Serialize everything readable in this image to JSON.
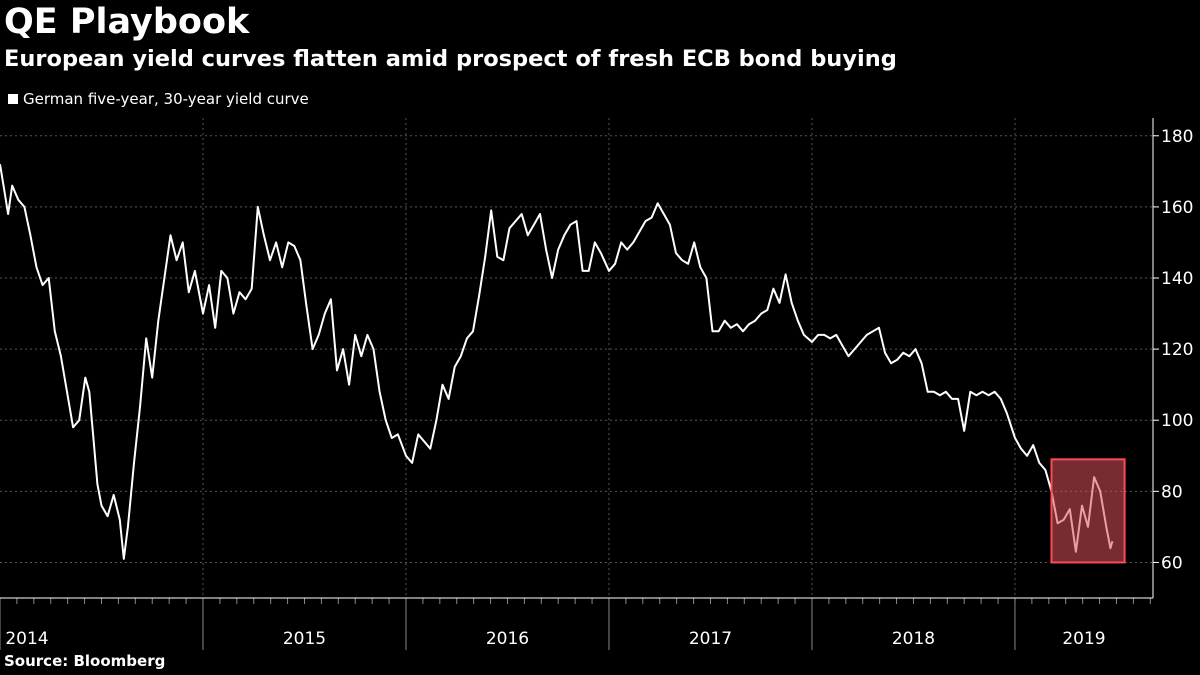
{
  "chart_data": {
    "type": "line",
    "title": "QE Playbook",
    "subtitle": "European yield curves flatten amid prospect of fresh ECB bond buying",
    "source": "Source: Bloomberg",
    "series": [
      {
        "name": "German five-year, 30-year yield curve",
        "points": [
          [
            2014.0,
            172
          ],
          [
            2014.02,
            165
          ],
          [
            2014.04,
            158
          ],
          [
            2014.06,
            166
          ],
          [
            2014.09,
            162
          ],
          [
            2014.12,
            160
          ],
          [
            2014.15,
            152
          ],
          [
            2014.18,
            143
          ],
          [
            2014.21,
            138
          ],
          [
            2014.24,
            140
          ],
          [
            2014.27,
            125
          ],
          [
            2014.3,
            118
          ],
          [
            2014.33,
            108
          ],
          [
            2014.36,
            98
          ],
          [
            2014.39,
            100
          ],
          [
            2014.42,
            112
          ],
          [
            2014.44,
            108
          ],
          [
            2014.46,
            95
          ],
          [
            2014.48,
            82
          ],
          [
            2014.5,
            76
          ],
          [
            2014.53,
            73
          ],
          [
            2014.56,
            79
          ],
          [
            2014.59,
            72
          ],
          [
            2014.61,
            61
          ],
          [
            2014.63,
            70
          ],
          [
            2014.66,
            88
          ],
          [
            2014.69,
            104
          ],
          [
            2014.72,
            123
          ],
          [
            2014.75,
            112
          ],
          [
            2014.78,
            128
          ],
          [
            2014.81,
            140
          ],
          [
            2014.84,
            152
          ],
          [
            2014.87,
            145
          ],
          [
            2014.9,
            150
          ],
          [
            2014.93,
            136
          ],
          [
            2014.96,
            142
          ],
          [
            2015.0,
            130
          ],
          [
            2015.03,
            138
          ],
          [
            2015.06,
            126
          ],
          [
            2015.09,
            142
          ],
          [
            2015.12,
            140
          ],
          [
            2015.15,
            130
          ],
          [
            2015.18,
            136
          ],
          [
            2015.21,
            134
          ],
          [
            2015.24,
            137
          ],
          [
            2015.27,
            160
          ],
          [
            2015.3,
            152
          ],
          [
            2015.33,
            145
          ],
          [
            2015.36,
            150
          ],
          [
            2015.39,
            143
          ],
          [
            2015.42,
            150
          ],
          [
            2015.45,
            149
          ],
          [
            2015.48,
            145
          ],
          [
            2015.51,
            132
          ],
          [
            2015.54,
            120
          ],
          [
            2015.57,
            124
          ],
          [
            2015.6,
            130
          ],
          [
            2015.63,
            134
          ],
          [
            2015.66,
            114
          ],
          [
            2015.69,
            120
          ],
          [
            2015.72,
            110
          ],
          [
            2015.75,
            124
          ],
          [
            2015.78,
            118
          ],
          [
            2015.81,
            124
          ],
          [
            2015.84,
            120
          ],
          [
            2015.87,
            108
          ],
          [
            2015.9,
            100
          ],
          [
            2015.93,
            95
          ],
          [
            2015.96,
            96
          ],
          [
            2016.0,
            90
          ],
          [
            2016.03,
            88
          ],
          [
            2016.06,
            96
          ],
          [
            2016.09,
            94
          ],
          [
            2016.12,
            92
          ],
          [
            2016.15,
            100
          ],
          [
            2016.18,
            110
          ],
          [
            2016.21,
            106
          ],
          [
            2016.24,
            115
          ],
          [
            2016.27,
            118
          ],
          [
            2016.3,
            123
          ],
          [
            2016.33,
            125
          ],
          [
            2016.36,
            135
          ],
          [
            2016.39,
            146
          ],
          [
            2016.42,
            159
          ],
          [
            2016.45,
            146
          ],
          [
            2016.48,
            145
          ],
          [
            2016.51,
            154
          ],
          [
            2016.54,
            156
          ],
          [
            2016.57,
            158
          ],
          [
            2016.6,
            152
          ],
          [
            2016.63,
            155
          ],
          [
            2016.66,
            158
          ],
          [
            2016.69,
            148
          ],
          [
            2016.72,
            140
          ],
          [
            2016.75,
            148
          ],
          [
            2016.78,
            152
          ],
          [
            2016.81,
            155
          ],
          [
            2016.84,
            156
          ],
          [
            2016.87,
            142
          ],
          [
            2016.9,
            142
          ],
          [
            2016.93,
            150
          ],
          [
            2016.96,
            147
          ],
          [
            2017.0,
            142
          ],
          [
            2017.03,
            144
          ],
          [
            2017.06,
            150
          ],
          [
            2017.09,
            148
          ],
          [
            2017.12,
            150
          ],
          [
            2017.15,
            153
          ],
          [
            2017.18,
            156
          ],
          [
            2017.21,
            157
          ],
          [
            2017.24,
            161
          ],
          [
            2017.27,
            158
          ],
          [
            2017.3,
            155
          ],
          [
            2017.33,
            147
          ],
          [
            2017.36,
            145
          ],
          [
            2017.39,
            144
          ],
          [
            2017.42,
            150
          ],
          [
            2017.45,
            143
          ],
          [
            2017.48,
            140
          ],
          [
            2017.51,
            125
          ],
          [
            2017.54,
            125
          ],
          [
            2017.57,
            128
          ],
          [
            2017.6,
            126
          ],
          [
            2017.63,
            127
          ],
          [
            2017.66,
            125
          ],
          [
            2017.69,
            127
          ],
          [
            2017.72,
            128
          ],
          [
            2017.75,
            130
          ],
          [
            2017.78,
            131
          ],
          [
            2017.81,
            137
          ],
          [
            2017.84,
            133
          ],
          [
            2017.87,
            141
          ],
          [
            2017.9,
            133
          ],
          [
            2017.93,
            128
          ],
          [
            2017.96,
            124
          ],
          [
            2018.0,
            122
          ],
          [
            2018.03,
            124
          ],
          [
            2018.06,
            124
          ],
          [
            2018.09,
            123
          ],
          [
            2018.12,
            124
          ],
          [
            2018.15,
            121
          ],
          [
            2018.18,
            118
          ],
          [
            2018.21,
            120
          ],
          [
            2018.24,
            122
          ],
          [
            2018.27,
            124
          ],
          [
            2018.3,
            125
          ],
          [
            2018.33,
            126
          ],
          [
            2018.36,
            119
          ],
          [
            2018.39,
            116
          ],
          [
            2018.42,
            117
          ],
          [
            2018.45,
            119
          ],
          [
            2018.48,
            118
          ],
          [
            2018.51,
            120
          ],
          [
            2018.54,
            116
          ],
          [
            2018.57,
            108
          ],
          [
            2018.6,
            108
          ],
          [
            2018.63,
            107
          ],
          [
            2018.66,
            108
          ],
          [
            2018.69,
            106
          ],
          [
            2018.72,
            106
          ],
          [
            2018.75,
            97
          ],
          [
            2018.78,
            108
          ],
          [
            2018.81,
            107
          ],
          [
            2018.84,
            108
          ],
          [
            2018.87,
            107
          ],
          [
            2018.9,
            108
          ],
          [
            2018.93,
            106
          ],
          [
            2018.96,
            102
          ],
          [
            2019.0,
            95
          ],
          [
            2019.03,
            92
          ],
          [
            2019.06,
            90
          ],
          [
            2019.09,
            93
          ],
          [
            2019.12,
            88
          ],
          [
            2019.15,
            86
          ],
          [
            2019.18,
            80
          ],
          [
            2019.21,
            71
          ],
          [
            2019.24,
            72
          ],
          [
            2019.27,
            75
          ],
          [
            2019.3,
            63
          ],
          [
            2019.33,
            76
          ],
          [
            2019.36,
            70
          ],
          [
            2019.39,
            84
          ],
          [
            2019.42,
            80
          ],
          [
            2019.45,
            70
          ],
          [
            2019.47,
            64
          ],
          [
            2019.48,
            66
          ]
        ]
      }
    ],
    "x_ticks": [
      "2014",
      "2015",
      "2016",
      "2017",
      "2018",
      "2019"
    ],
    "y_ticks": [
      60,
      80,
      100,
      120,
      140,
      160,
      180
    ],
    "ylim": [
      50,
      185
    ],
    "xlim": [
      2014.0,
      2019.68
    ],
    "grid": true,
    "legend_position": "top-left",
    "highlight": {
      "x_range": [
        2019.18,
        2019.54
      ],
      "y_range": [
        60,
        89
      ],
      "color": "#d9515c"
    },
    "colors": {
      "background": "#000000",
      "line": "#ffffff",
      "grid": "#555555",
      "highlight_line": "#ffb3b8"
    }
  }
}
